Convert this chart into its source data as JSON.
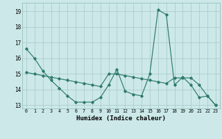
{
  "xlabel": "Humidex (Indice chaleur)",
  "x": [
    0,
    1,
    2,
    3,
    4,
    5,
    6,
    7,
    8,
    9,
    10,
    11,
    12,
    13,
    14,
    15,
    16,
    17,
    18,
    19,
    20,
    21,
    22,
    23
  ],
  "line1": [
    16.6,
    16.0,
    15.2,
    14.6,
    14.1,
    13.6,
    13.2,
    13.2,
    13.2,
    13.5,
    14.3,
    15.3,
    13.9,
    13.7,
    13.6,
    15.0,
    19.1,
    18.8,
    14.3,
    14.8,
    14.3,
    13.5,
    13.6,
    13.0
  ],
  "line2": [
    15.1,
    15.0,
    14.9,
    14.8,
    14.7,
    14.6,
    14.5,
    14.4,
    14.3,
    14.2,
    15.0,
    15.0,
    14.9,
    14.8,
    14.7,
    14.6,
    14.5,
    14.4,
    14.75,
    14.75,
    14.75,
    14.3,
    13.6,
    13.0
  ],
  "ylim_min": 12.8,
  "ylim_max": 19.55,
  "yticks": [
    13,
    14,
    15,
    16,
    17,
    18,
    19
  ],
  "line_color": "#2d7a6c",
  "bg_color": "#cce8e8",
  "grid_color": "#a8c8c8",
  "spine_color": "#8ab8b8"
}
